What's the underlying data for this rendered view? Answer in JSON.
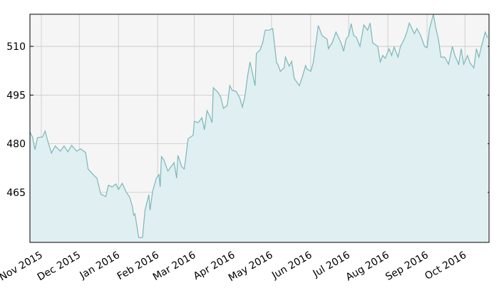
{
  "chart_data": {
    "type": "area",
    "x": [
      -9,
      -7,
      -5,
      -3,
      1,
      3,
      5,
      8,
      11,
      15,
      18,
      21,
      24,
      28,
      31,
      35,
      37,
      41,
      44,
      47,
      51,
      53,
      56,
      59,
      61,
      64,
      67,
      70,
      72,
      73,
      74,
      77,
      80,
      82,
      85,
      86,
      88,
      91,
      93,
      94,
      95,
      97,
      100,
      103,
      105,
      107,
      108,
      111,
      113,
      114,
      116,
      120,
      121,
      124,
      127,
      129,
      131,
      133,
      135,
      136,
      140,
      142,
      144,
      147,
      149,
      151,
      154,
      157,
      159,
      161,
      163,
      165,
      166,
      169,
      170,
      173,
      175,
      177,
      180,
      183,
      186,
      187,
      189,
      192,
      193,
      196,
      198,
      200,
      204,
      206,
      209,
      210,
      213,
      215,
      217,
      219,
      222,
      226,
      227,
      230,
      233,
      237,
      239,
      241,
      243,
      245,
      247,
      249,
      252,
      255,
      258,
      260,
      262,
      266,
      268,
      270,
      272,
      275,
      277,
      279,
      282,
      284,
      287,
      289,
      291,
      295,
      297,
      300,
      303,
      305,
      307,
      310,
      312,
      314,
      316,
      319,
      322,
      325,
      327,
      330,
      332,
      334,
      337,
      339,
      342,
      344,
      346,
      348,
      351,
      353
    ],
    "values": [
      483.6,
      482.1,
      478.2,
      481.9,
      482.1,
      483.9,
      481,
      477.1,
      479.3,
      477.7,
      479.3,
      477.5,
      479.5,
      477.7,
      478.4,
      477.3,
      472.2,
      470.5,
      469.4,
      464.5,
      463.7,
      467.2,
      466.7,
      467.6,
      465.9,
      467.8,
      465.2,
      463.4,
      460.6,
      458,
      458.4,
      451.1,
      451.1,
      459.5,
      464.3,
      459.5,
      465.4,
      469.4,
      470.5,
      466.7,
      476,
      474.9,
      471.6,
      473.1,
      474.2,
      469.4,
      476.4,
      472.9,
      472.2,
      474.9,
      481.5,
      482.6,
      486.9,
      486.5,
      488,
      484.3,
      490.2,
      488.7,
      486.5,
      497.3,
      495.7,
      494.2,
      490.9,
      491.8,
      497.9,
      496.4,
      496.2,
      494,
      491.3,
      494.6,
      500.6,
      505.2,
      503.4,
      497.9,
      507.8,
      508.9,
      511.1,
      515,
      515,
      515.5,
      504.9,
      504.5,
      502.3,
      503.4,
      506.7,
      503.9,
      505.4,
      500.1,
      497.9,
      500.1,
      504.1,
      503,
      502.3,
      504.9,
      510.7,
      516.4,
      513.3,
      512.2,
      509.3,
      511.1,
      514.4,
      511.1,
      508.5,
      512.2,
      513.3,
      517,
      513.3,
      512.9,
      510,
      516.6,
      515,
      517.2,
      511.1,
      510,
      505.2,
      507.2,
      506.3,
      509.3,
      507.2,
      509.8,
      506.7,
      510,
      512.2,
      514.4,
      517.2,
      513.9,
      515.5,
      513.3,
      510,
      509.6,
      515.5,
      519.9,
      515.5,
      512.2,
      506.7,
      506.7,
      504.5,
      510,
      507.2,
      504.5,
      509.3,
      504.5,
      507.2,
      504.9,
      503.4,
      509.3,
      506.7,
      510,
      514.4,
      512.6
    ],
    "color": "#7ab8b8",
    "fill_color": "#e0eff2",
    "xlim": [
      -9,
      354
    ],
    "xticks": [
      {
        "value": 0,
        "label": "Nov 2015"
      },
      {
        "value": 30,
        "label": "Dec 2015"
      },
      {
        "value": 61,
        "label": "Jan 2016"
      },
      {
        "value": 92,
        "label": "Feb 2016"
      },
      {
        "value": 121,
        "label": "Mar 2016"
      },
      {
        "value": 152,
        "label": "Apr 2016"
      },
      {
        "value": 182,
        "label": "May 2016"
      },
      {
        "value": 213,
        "label": "Jun 2016"
      },
      {
        "value": 243,
        "label": "Jul 2016"
      },
      {
        "value": 274,
        "label": "Aug 2016"
      },
      {
        "value": 305,
        "label": "Sep 2016"
      },
      {
        "value": 335,
        "label": "Oct 2016"
      }
    ],
    "ylim": [
      449.6,
      519.9
    ],
    "yticks": [
      465,
      480,
      495,
      510
    ],
    "grid": true
  }
}
